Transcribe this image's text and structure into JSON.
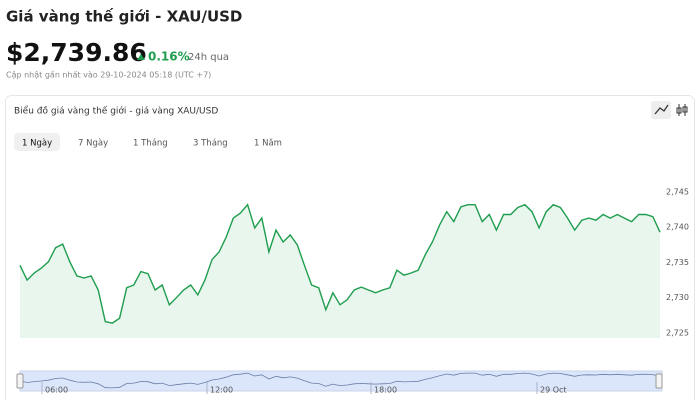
{
  "header": {
    "title": "Giá vàng thế giới - XAU/USD",
    "price": "$2,739.86",
    "change": "0.16%",
    "period": "24h qua",
    "updated": "Cập nhật gần nhất vào 29-10-2024 05:18 (UTC +7)"
  },
  "card": {
    "title": "Biểu đồ giá vàng thế giới - giá vàng XAU/USD",
    "tabs": [
      "1 Ngày",
      "7 Ngày",
      "1 Tháng",
      "3 Tháng",
      "1 Năm"
    ],
    "selected_tab": 0
  },
  "navigator": {
    "labels": [
      "06:00",
      "12:00",
      "18:00",
      "29 Oct"
    ]
  },
  "chart_data": {
    "type": "line",
    "color": "#1f9d4f",
    "values": [
      2734.6,
      2732.5,
      2733.5,
      2734.2,
      2735.1,
      2737.1,
      2737.6,
      2735.1,
      2733.1,
      2732.8,
      2733.1,
      2731.1,
      2726.6,
      2726.4,
      2727.1,
      2731.4,
      2731.8,
      2733.7,
      2733.4,
      2731.1,
      2731.8,
      2729.0,
      2730.0,
      2731.1,
      2731.8,
      2730.4,
      2732.5,
      2735.4,
      2736.5,
      2738.6,
      2741.3,
      2742.0,
      2743.2,
      2739.9,
      2741.3,
      2736.5,
      2739.6,
      2737.9,
      2738.9,
      2737.5,
      2734.6,
      2731.8,
      2731.4,
      2728.3,
      2730.7,
      2729.0,
      2729.7,
      2731.1,
      2731.5,
      2731.1,
      2730.7,
      2731.1,
      2731.4,
      2733.9,
      2733.2,
      2733.5,
      2733.9,
      2736.1,
      2737.9,
      2740.3,
      2742.2,
      2740.8,
      2742.9,
      2743.2,
      2743.2,
      2740.8,
      2741.8,
      2739.6,
      2741.8,
      2741.8,
      2742.8,
      2743.2,
      2742.2,
      2739.9,
      2742.2,
      2743.2,
      2742.8,
      2741.3,
      2739.6,
      2741.0,
      2741.3,
      2741.0,
      2741.8,
      2741.3,
      2741.8,
      2741.3,
      2740.8,
      2741.8,
      2741.8,
      2741.5,
      2739.3
    ],
    "ylim": [
      2724,
      2749
    ],
    "yticks": [
      {
        "value": 2725,
        "label": "2,725"
      },
      {
        "value": 2730,
        "label": "2,730"
      },
      {
        "value": 2735,
        "label": "2,735"
      },
      {
        "value": 2740,
        "label": "2,740"
      },
      {
        "value": 2745,
        "label": "2,745"
      }
    ]
  }
}
